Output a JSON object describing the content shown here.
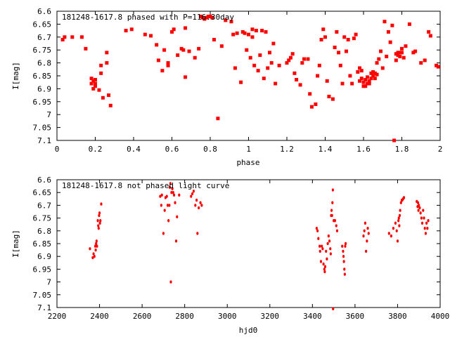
{
  "chart_data": [
    {
      "type": "scatter",
      "title": "181248-1617.8 phased with P=116.30day",
      "xlabel": "phase",
      "ylabel": "I[mag]",
      "xlim": [
        0,
        2
      ],
      "ylim": [
        7.1,
        6.6
      ],
      "y_inverted": true,
      "grid": false,
      "marker_color": "#ff0000",
      "xticks": [
        "0",
        "0.2",
        "0.4",
        "0.6",
        "0.8",
        "1",
        "1.2",
        "1.4",
        "1.6",
        "1.8",
        "2"
      ],
      "yticks": [
        "6.6",
        "6.65",
        "6.7",
        "6.75",
        "6.8",
        "6.85",
        "6.9",
        "6.95",
        "7",
        "7.05",
        "7.1"
      ],
      "xtick_values": [
        0,
        0.2,
        0.4,
        0.6,
        0.8,
        1.0,
        1.2,
        1.4,
        1.6,
        1.8,
        2.0
      ],
      "ytick_values": [
        6.6,
        6.65,
        6.7,
        6.75,
        6.8,
        6.85,
        6.9,
        6.95,
        7.0,
        7.05,
        7.1
      ],
      "points": [
        [
          0.03,
          6.71
        ],
        [
          0.04,
          6.7
        ],
        [
          0.08,
          6.7
        ],
        [
          0.13,
          6.7
        ],
        [
          0.15,
          6.745
        ],
        [
          0.18,
          6.86
        ],
        [
          0.18,
          6.88
        ],
        [
          0.19,
          6.87
        ],
        [
          0.19,
          6.9
        ],
        [
          0.2,
          6.88
        ],
        [
          0.2,
          6.865
        ],
        [
          0.2,
          6.89
        ],
        [
          0.22,
          6.905
        ],
        [
          0.23,
          6.81
        ],
        [
          0.23,
          6.84
        ],
        [
          0.24,
          6.935
        ],
        [
          0.26,
          6.8
        ],
        [
          0.26,
          6.76
        ],
        [
          0.27,
          6.925
        ],
        [
          0.28,
          6.965
        ],
        [
          0.36,
          6.675
        ],
        [
          0.39,
          6.67
        ],
        [
          0.46,
          6.69
        ],
        [
          0.49,
          6.695
        ],
        [
          0.52,
          6.73
        ],
        [
          0.53,
          6.79
        ],
        [
          0.55,
          6.83
        ],
        [
          0.56,
          6.75
        ],
        [
          0.58,
          6.8
        ],
        [
          0.58,
          6.81
        ],
        [
          0.6,
          6.68
        ],
        [
          0.61,
          6.67
        ],
        [
          0.63,
          6.77
        ],
        [
          0.65,
          6.745
        ],
        [
          0.66,
          6.75
        ],
        [
          0.67,
          6.855
        ],
        [
          0.67,
          6.665
        ],
        [
          0.69,
          6.755
        ],
        [
          0.72,
          6.78
        ],
        [
          0.74,
          6.745
        ],
        [
          0.75,
          6.62
        ],
        [
          0.76,
          6.625
        ],
        [
          0.77,
          6.63
        ],
        [
          0.78,
          6.625
        ],
        [
          0.79,
          6.62
        ],
        [
          0.8,
          6.62
        ],
        [
          0.81,
          6.625
        ],
        [
          0.82,
          6.71
        ],
        [
          0.84,
          7.015
        ],
        [
          0.86,
          6.735
        ],
        [
          0.88,
          6.635
        ],
        [
          0.91,
          6.64
        ],
        [
          0.92,
          6.69
        ],
        [
          0.93,
          6.82
        ],
        [
          0.94,
          6.685
        ],
        [
          0.96,
          6.875
        ],
        [
          0.97,
          6.68
        ],
        [
          0.98,
          6.685
        ],
        [
          0.99,
          6.75
        ],
        [
          1.0,
          6.69
        ],
        [
          1.01,
          6.78
        ],
        [
          1.02,
          6.67
        ],
        [
          1.02,
          6.7
        ],
        [
          1.03,
          6.81
        ],
        [
          1.04,
          6.675
        ],
        [
          1.05,
          6.83
        ],
        [
          1.06,
          6.77
        ],
        [
          1.07,
          6.675
        ],
        [
          1.08,
          6.86
        ],
        [
          1.09,
          6.68
        ],
        [
          1.1,
          6.82
        ],
        [
          1.11,
          6.76
        ],
        [
          1.12,
          6.8
        ],
        [
          1.13,
          6.725
        ],
        [
          1.14,
          6.88
        ],
        [
          1.16,
          6.81
        ],
        [
          1.2,
          6.8
        ],
        [
          1.21,
          6.79
        ],
        [
          1.22,
          6.78
        ],
        [
          1.23,
          6.765
        ],
        [
          1.24,
          6.84
        ],
        [
          1.25,
          6.865
        ],
        [
          1.27,
          6.885
        ],
        [
          1.28,
          6.8
        ],
        [
          1.29,
          6.785
        ],
        [
          1.31,
          6.785
        ],
        [
          1.32,
          6.92
        ],
        [
          1.33,
          6.97
        ],
        [
          1.35,
          6.96
        ],
        [
          1.36,
          6.85
        ],
        [
          1.37,
          6.81
        ],
        [
          1.38,
          6.71
        ],
        [
          1.39,
          6.67
        ],
        [
          1.4,
          6.7
        ],
        [
          1.41,
          6.87
        ],
        [
          1.42,
          6.93
        ],
        [
          1.44,
          6.94
        ],
        [
          1.45,
          6.74
        ],
        [
          1.46,
          6.68
        ],
        [
          1.47,
          6.76
        ],
        [
          1.48,
          6.81
        ],
        [
          1.49,
          6.88
        ],
        [
          1.5,
          6.7
        ],
        [
          1.51,
          6.755
        ],
        [
          1.52,
          6.71
        ],
        [
          1.53,
          6.85
        ],
        [
          1.54,
          6.88
        ],
        [
          1.55,
          6.705
        ],
        [
          1.56,
          6.69
        ],
        [
          1.57,
          6.835
        ],
        [
          1.58,
          6.82
        ],
        [
          1.59,
          6.83
        ],
        [
          1.6,
          6.875
        ],
        [
          1.61,
          6.89
        ],
        [
          1.62,
          6.88
        ],
        [
          1.63,
          6.87
        ],
        [
          1.64,
          6.86
        ],
        [
          1.65,
          6.85
        ],
        [
          1.66,
          6.84
        ],
        [
          1.67,
          6.8
        ],
        [
          1.68,
          6.785
        ],
        [
          1.69,
          6.755
        ],
        [
          1.7,
          6.82
        ],
        [
          1.71,
          6.64
        ],
        [
          1.72,
          6.775
        ],
        [
          1.73,
          6.68
        ],
        [
          1.74,
          6.72
        ],
        [
          1.75,
          6.655
        ],
        [
          1.76,
          7.1
        ],
        [
          1.77,
          6.79
        ],
        [
          1.78,
          6.76
        ],
        [
          1.79,
          6.775
        ],
        [
          1.8,
          6.745
        ],
        [
          1.81,
          6.78
        ],
        [
          1.82,
          6.735
        ],
        [
          1.84,
          6.65
        ],
        [
          1.86,
          6.76
        ],
        [
          1.87,
          6.755
        ],
        [
          1.9,
          6.8
        ],
        [
          1.92,
          6.79
        ],
        [
          1.94,
          6.68
        ],
        [
          1.95,
          6.695
        ],
        [
          1.98,
          6.81
        ],
        [
          1.99,
          6.815
        ],
        [
          1.58,
          6.87
        ],
        [
          1.59,
          6.86
        ],
        [
          1.6,
          6.89
        ],
        [
          1.61,
          6.865
        ],
        [
          1.62,
          6.855
        ],
        [
          1.63,
          6.88
        ],
        [
          1.64,
          6.84
        ],
        [
          1.65,
          6.835
        ],
        [
          1.66,
          6.86
        ],
        [
          1.67,
          6.845
        ],
        [
          1.77,
          6.765
        ],
        [
          1.78,
          6.77
        ],
        [
          1.79,
          6.76
        ],
        [
          1.8,
          6.76
        ]
      ]
    },
    {
      "type": "scatter",
      "title": "181248-1617.8 not phased light curve",
      "xlabel": "hjd0",
      "ylabel": "I[mag]",
      "xlim": [
        2200,
        4000
      ],
      "ylim": [
        7.1,
        6.6
      ],
      "y_inverted": true,
      "grid": false,
      "marker_color": "#ff0000",
      "xticks": [
        "2200",
        "2400",
        "2600",
        "2800",
        "3000",
        "3200",
        "3400",
        "3600",
        "3800",
        "4000"
      ],
      "yticks": [
        "6.6",
        "6.65",
        "6.7",
        "6.75",
        "6.8",
        "6.85",
        "6.9",
        "6.95",
        "7",
        "7.05",
        "7.1"
      ],
      "xtick_values": [
        2200,
        2400,
        2600,
        2800,
        3000,
        3200,
        3400,
        3600,
        3800,
        4000
      ],
      "ytick_values": [
        6.6,
        6.65,
        6.7,
        6.75,
        6.8,
        6.85,
        6.9,
        6.95,
        7.0,
        7.05,
        7.1
      ],
      "points": [
        [
          2355,
          6.87
        ],
        [
          2368,
          6.905
        ],
        [
          2372,
          6.89
        ],
        [
          2376,
          6.9
        ],
        [
          2380,
          6.86
        ],
        [
          2382,
          6.875
        ],
        [
          2384,
          6.85
        ],
        [
          2386,
          6.84
        ],
        [
          2388,
          6.86
        ],
        [
          2392,
          6.76
        ],
        [
          2394,
          6.78
        ],
        [
          2396,
          6.79
        ],
        [
          2398,
          6.74
        ],
        [
          2400,
          6.73
        ],
        [
          2402,
          6.77
        ],
        [
          2404,
          6.76
        ],
        [
          2408,
          6.695
        ],
        [
          2685,
          6.665
        ],
        [
          2690,
          6.7
        ],
        [
          2693,
          6.66
        ],
        [
          2700,
          6.81
        ],
        [
          2706,
          6.72
        ],
        [
          2710,
          6.67
        ],
        [
          2716,
          6.665
        ],
        [
          2720,
          6.7
        ],
        [
          2724,
          6.76
        ],
        [
          2728,
          6.7
        ],
        [
          2730,
          6.63
        ],
        [
          2733,
          6.615
        ],
        [
          2735,
          7.0
        ],
        [
          2738,
          6.65
        ],
        [
          2742,
          6.635
        ],
        [
          2746,
          6.65
        ],
        [
          2750,
          6.66
        ],
        [
          2755,
          6.69
        ],
        [
          2760,
          6.84
        ],
        [
          2764,
          6.745
        ],
        [
          2774,
          6.66
        ],
        [
          2830,
          6.665
        ],
        [
          2836,
          6.655
        ],
        [
          2842,
          6.645
        ],
        [
          2850,
          6.7
        ],
        [
          2856,
          6.68
        ],
        [
          2860,
          6.81
        ],
        [
          2866,
          6.71
        ],
        [
          2874,
          6.69
        ],
        [
          2880,
          6.7
        ],
        [
          3420,
          6.79
        ],
        [
          3424,
          6.8
        ],
        [
          3428,
          6.83
        ],
        [
          3434,
          6.86
        ],
        [
          3436,
          6.88
        ],
        [
          3440,
          6.92
        ],
        [
          3444,
          6.86
        ],
        [
          3448,
          6.87
        ],
        [
          3452,
          6.93
        ],
        [
          3456,
          6.95
        ],
        [
          3458,
          6.96
        ],
        [
          3460,
          6.94
        ],
        [
          3464,
          6.88
        ],
        [
          3468,
          6.91
        ],
        [
          3472,
          6.85
        ],
        [
          3476,
          6.82
        ],
        [
          3480,
          6.84
        ],
        [
          3484,
          6.87
        ],
        [
          3486,
          6.89
        ],
        [
          3488,
          6.74
        ],
        [
          3490,
          6.72
        ],
        [
          3492,
          6.74
        ],
        [
          3494,
          6.69
        ],
        [
          3496,
          6.64
        ],
        [
          3497,
          7.105
        ],
        [
          3500,
          6.76
        ],
        [
          3506,
          6.76
        ],
        [
          3512,
          6.78
        ],
        [
          3516,
          6.8
        ],
        [
          3540,
          6.86
        ],
        [
          3544,
          6.88
        ],
        [
          3546,
          6.9
        ],
        [
          3548,
          6.92
        ],
        [
          3550,
          6.95
        ],
        [
          3552,
          6.97
        ],
        [
          3554,
          6.86
        ],
        [
          3556,
          6.85
        ],
        [
          3640,
          6.82
        ],
        [
          3644,
          6.8
        ],
        [
          3648,
          6.77
        ],
        [
          3652,
          6.88
        ],
        [
          3656,
          6.84
        ],
        [
          3660,
          6.79
        ],
        [
          3664,
          6.81
        ],
        [
          3760,
          6.81
        ],
        [
          3770,
          6.82
        ],
        [
          3780,
          6.79
        ],
        [
          3790,
          6.77
        ],
        [
          3796,
          6.8
        ],
        [
          3800,
          6.84
        ],
        [
          3804,
          6.76
        ],
        [
          3806,
          6.75
        ],
        [
          3808,
          6.78
        ],
        [
          3810,
          6.74
        ],
        [
          3812,
          6.72
        ],
        [
          3816,
          6.69
        ],
        [
          3820,
          6.68
        ],
        [
          3822,
          6.68
        ],
        [
          3826,
          6.675
        ],
        [
          3830,
          6.67
        ],
        [
          3890,
          6.685
        ],
        [
          3894,
          6.705
        ],
        [
          3896,
          6.69
        ],
        [
          3898,
          6.72
        ],
        [
          3900,
          6.7
        ],
        [
          3904,
          6.71
        ],
        [
          3908,
          6.73
        ],
        [
          3912,
          6.75
        ],
        [
          3916,
          6.77
        ],
        [
          3920,
          6.72
        ],
        [
          3924,
          6.75
        ],
        [
          3928,
          6.79
        ],
        [
          3932,
          6.81
        ],
        [
          3936,
          6.77
        ],
        [
          3940,
          6.79
        ],
        [
          3944,
          6.76
        ]
      ]
    }
  ]
}
